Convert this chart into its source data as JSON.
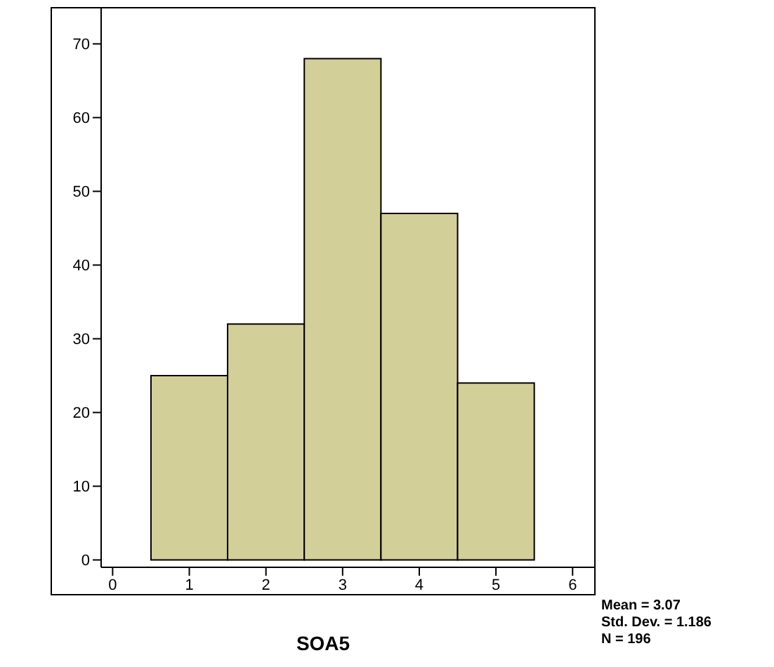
{
  "chart_data": {
    "type": "histogram",
    "xlabel": "SOA5",
    "bins": [
      0.5,
      1.5,
      2.5,
      3.5,
      4.5,
      5.5
    ],
    "values": [
      25,
      32,
      68,
      47,
      24
    ],
    "color": "#d3cf98",
    "xlim": [
      -0.15,
      6.3
    ],
    "xticks": [
      0,
      1,
      2,
      3,
      4,
      5,
      6
    ],
    "ylim": [
      -1,
      75
    ],
    "yticks": [
      0,
      10,
      20,
      30,
      40,
      50,
      60,
      70
    ],
    "annotations": [
      "Mean = 3.07",
      "Std. Dev. = 1.186",
      "N = 196"
    ]
  }
}
